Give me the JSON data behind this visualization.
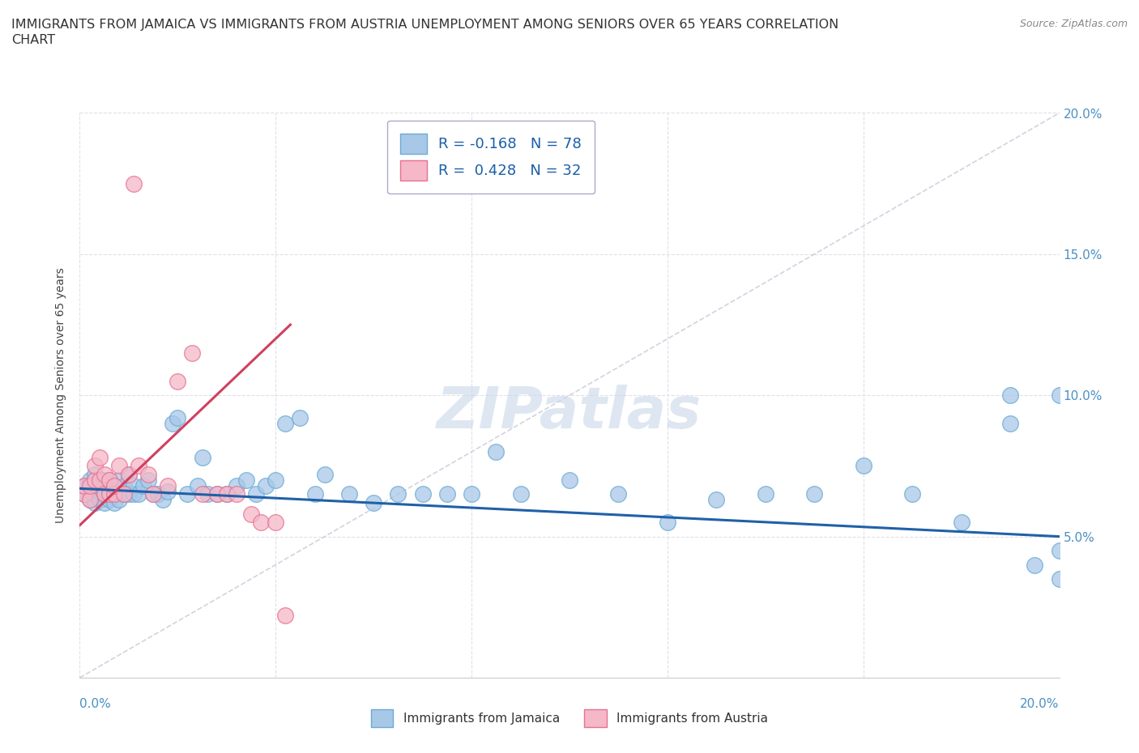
{
  "title_line1": "IMMIGRANTS FROM JAMAICA VS IMMIGRANTS FROM AUSTRIA UNEMPLOYMENT AMONG SENIORS OVER 65 YEARS CORRELATION",
  "title_line2": "CHART",
  "source": "Source: ZipAtlas.com",
  "ylabel": "Unemployment Among Seniors over 65 years",
  "xlim": [
    0.0,
    0.2
  ],
  "ylim": [
    0.0,
    0.2
  ],
  "jamaica_color": "#a8c8e8",
  "jamaica_edge": "#6aaad4",
  "austria_color": "#f4b8c8",
  "austria_edge": "#e87090",
  "jamaica_R": -0.168,
  "jamaica_N": 78,
  "austria_R": 0.428,
  "austria_N": 32,
  "jamaica_line_color": "#2060a8",
  "austria_line_color": "#d04060",
  "ref_line_color": "#c8c8d8",
  "jamaica_scatter_x": [
    0.001,
    0.001,
    0.002,
    0.002,
    0.002,
    0.003,
    0.003,
    0.003,
    0.003,
    0.004,
    0.004,
    0.004,
    0.005,
    0.005,
    0.005,
    0.005,
    0.006,
    0.006,
    0.006,
    0.007,
    0.007,
    0.007,
    0.008,
    0.008,
    0.008,
    0.009,
    0.009,
    0.01,
    0.01,
    0.011,
    0.011,
    0.012,
    0.013,
    0.014,
    0.015,
    0.016,
    0.017,
    0.018,
    0.019,
    0.02,
    0.022,
    0.024,
    0.025,
    0.026,
    0.028,
    0.03,
    0.032,
    0.034,
    0.036,
    0.038,
    0.04,
    0.042,
    0.045,
    0.048,
    0.05,
    0.055,
    0.06,
    0.065,
    0.07,
    0.075,
    0.08,
    0.085,
    0.09,
    0.1,
    0.11,
    0.12,
    0.13,
    0.14,
    0.15,
    0.16,
    0.17,
    0.18,
    0.19,
    0.19,
    0.195,
    0.2,
    0.2,
    0.2
  ],
  "jamaica_scatter_y": [
    0.065,
    0.068,
    0.063,
    0.066,
    0.07,
    0.062,
    0.065,
    0.068,
    0.072,
    0.063,
    0.066,
    0.07,
    0.062,
    0.065,
    0.068,
    0.07,
    0.063,
    0.066,
    0.07,
    0.062,
    0.065,
    0.068,
    0.063,
    0.066,
    0.07,
    0.065,
    0.068,
    0.065,
    0.072,
    0.065,
    0.068,
    0.065,
    0.068,
    0.07,
    0.065,
    0.065,
    0.063,
    0.066,
    0.09,
    0.092,
    0.065,
    0.068,
    0.078,
    0.065,
    0.065,
    0.065,
    0.068,
    0.07,
    0.065,
    0.068,
    0.07,
    0.09,
    0.092,
    0.065,
    0.072,
    0.065,
    0.062,
    0.065,
    0.065,
    0.065,
    0.065,
    0.08,
    0.065,
    0.07,
    0.065,
    0.055,
    0.063,
    0.065,
    0.065,
    0.075,
    0.065,
    0.055,
    0.1,
    0.09,
    0.04,
    0.045,
    0.035,
    0.1
  ],
  "austria_scatter_x": [
    0.001,
    0.001,
    0.002,
    0.002,
    0.003,
    0.003,
    0.004,
    0.004,
    0.005,
    0.005,
    0.006,
    0.006,
    0.007,
    0.007,
    0.008,
    0.009,
    0.01,
    0.011,
    0.012,
    0.014,
    0.015,
    0.018,
    0.02,
    0.023,
    0.025,
    0.028,
    0.03,
    0.032,
    0.035,
    0.037,
    0.04,
    0.042
  ],
  "austria_scatter_y": [
    0.065,
    0.068,
    0.063,
    0.068,
    0.07,
    0.075,
    0.07,
    0.078,
    0.065,
    0.072,
    0.065,
    0.07,
    0.065,
    0.068,
    0.075,
    0.065,
    0.072,
    0.175,
    0.075,
    0.072,
    0.065,
    0.068,
    0.105,
    0.115,
    0.065,
    0.065,
    0.065,
    0.065,
    0.058,
    0.055,
    0.055,
    0.022
  ],
  "jamaica_trend": [
    0.067,
    0.05
  ],
  "austria_trend_x": [
    0.0,
    0.043
  ],
  "austria_trend_y": [
    0.054,
    0.125
  ],
  "background_color": "#ffffff",
  "grid_color": "#e0e0e8",
  "title_fontsize": 11.5,
  "legend_fontsize": 13,
  "axis_label_fontsize": 10,
  "watermark_color": "#c8d8e8"
}
